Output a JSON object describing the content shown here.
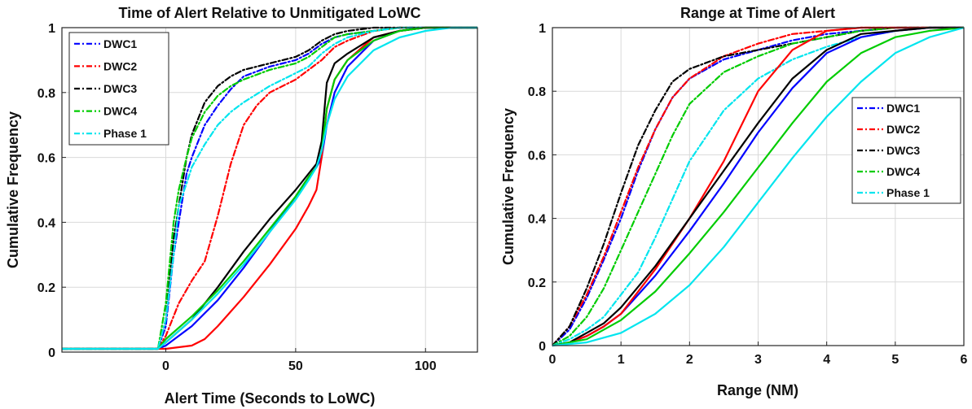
{
  "chart_data": [
    {
      "type": "line",
      "title": "Time of Alert Relative to Unmitigated LoWC",
      "xlabel": "Alert Time (Seconds to LoWC)",
      "ylabel": "Cumulative Frequency",
      "xlim": [
        -40,
        120
      ],
      "ylim": [
        0,
        1
      ],
      "xticks": [
        0,
        50,
        100
      ],
      "yticks": [
        0,
        0.2,
        0.4,
        0.6,
        0.8,
        1
      ],
      "yticklabels": [
        "0",
        "0.2",
        "0.4",
        "0.6",
        "0.8",
        "1"
      ],
      "grid": true,
      "legend_position": "top-left",
      "legend": [
        "DWC1",
        "DWC2",
        "DWC3",
        "DWC4",
        "Phase 1"
      ],
      "series": [
        {
          "name": "DWC1",
          "color": "#0000ff",
          "style": "dashdot",
          "x": [
            -40,
            -3,
            0,
            3,
            6,
            8,
            10,
            15,
            20,
            25,
            30,
            40,
            50,
            55,
            60,
            65,
            70,
            80,
            90,
            120
          ],
          "y": [
            0.01,
            0.01,
            0.08,
            0.3,
            0.45,
            0.55,
            0.6,
            0.7,
            0.76,
            0.81,
            0.85,
            0.88,
            0.9,
            0.92,
            0.95,
            0.97,
            0.98,
            0.99,
            1.0,
            1.0
          ]
        },
        {
          "name": "DWC2",
          "color": "#ff0000",
          "style": "dashdot",
          "x": [
            -40,
            -3,
            0,
            5,
            10,
            15,
            20,
            25,
            30,
            35,
            40,
            50,
            60,
            65,
            70,
            80,
            90,
            120
          ],
          "y": [
            0.01,
            0.01,
            0.05,
            0.15,
            0.22,
            0.28,
            0.42,
            0.58,
            0.7,
            0.76,
            0.8,
            0.84,
            0.9,
            0.94,
            0.96,
            0.99,
            1.0,
            1.0
          ]
        },
        {
          "name": "DWC3",
          "color": "#000000",
          "style": "dashdot",
          "x": [
            -40,
            -3,
            0,
            3,
            6,
            8,
            10,
            15,
            20,
            25,
            30,
            40,
            50,
            55,
            60,
            65,
            70,
            80,
            90,
            120
          ],
          "y": [
            0.01,
            0.01,
            0.1,
            0.35,
            0.5,
            0.6,
            0.67,
            0.77,
            0.82,
            0.85,
            0.87,
            0.89,
            0.91,
            0.93,
            0.96,
            0.98,
            0.99,
            1.0,
            1.0,
            1.0
          ]
        },
        {
          "name": "DWC4",
          "color": "#00cc00",
          "style": "dashdot",
          "x": [
            -40,
            -3,
            0,
            3,
            5,
            8,
            10,
            15,
            20,
            25,
            30,
            40,
            50,
            55,
            60,
            65,
            70,
            80,
            90,
            120
          ],
          "y": [
            0.01,
            0.01,
            0.15,
            0.4,
            0.5,
            0.6,
            0.66,
            0.74,
            0.79,
            0.82,
            0.84,
            0.87,
            0.89,
            0.91,
            0.94,
            0.97,
            0.98,
            0.99,
            1.0,
            1.0
          ]
        },
        {
          "name": "Phase 1",
          "color": "#00e5ee",
          "style": "dashdot",
          "x": [
            -40,
            -3,
            0,
            3,
            5,
            8,
            10,
            15,
            20,
            25,
            30,
            40,
            50,
            55,
            60,
            65,
            70,
            80,
            90,
            120
          ],
          "y": [
            0.01,
            0.01,
            0.1,
            0.3,
            0.45,
            0.52,
            0.57,
            0.64,
            0.7,
            0.74,
            0.77,
            0.82,
            0.86,
            0.88,
            0.92,
            0.95,
            0.97,
            0.99,
            1.0,
            1.0
          ]
        },
        {
          "name": "DWC1",
          "color": "#0000ff",
          "style": "solid",
          "x": [
            -40,
            -3,
            0,
            10,
            20,
            30,
            40,
            50,
            55,
            58,
            60,
            62,
            65,
            70,
            80,
            90,
            100,
            120
          ],
          "y": [
            0.01,
            0.01,
            0.02,
            0.08,
            0.16,
            0.26,
            0.37,
            0.48,
            0.54,
            0.57,
            0.6,
            0.7,
            0.8,
            0.88,
            0.96,
            0.99,
            1.0,
            1.0
          ]
        },
        {
          "name": "DWC2",
          "color": "#ff0000",
          "style": "solid",
          "x": [
            -40,
            -3,
            0,
            10,
            15,
            20,
            30,
            40,
            50,
            55,
            58,
            60,
            62,
            65,
            70,
            80,
            90,
            100,
            120
          ],
          "y": [
            0.01,
            0.01,
            0.01,
            0.02,
            0.04,
            0.08,
            0.17,
            0.27,
            0.38,
            0.45,
            0.5,
            0.6,
            0.75,
            0.84,
            0.9,
            0.97,
            0.99,
            1.0,
            1.0
          ]
        },
        {
          "name": "DWC3",
          "color": "#000000",
          "style": "solid",
          "x": [
            -40,
            -3,
            0,
            10,
            20,
            30,
            40,
            50,
            55,
            58,
            60,
            62,
            65,
            70,
            80,
            90,
            100,
            120
          ],
          "y": [
            0.01,
            0.01,
            0.03,
            0.1,
            0.2,
            0.31,
            0.41,
            0.5,
            0.55,
            0.58,
            0.65,
            0.83,
            0.89,
            0.92,
            0.97,
            0.99,
            1.0,
            1.0
          ]
        },
        {
          "name": "DWC4",
          "color": "#00cc00",
          "style": "solid",
          "x": [
            -40,
            -3,
            0,
            10,
            20,
            30,
            40,
            50,
            55,
            58,
            60,
            62,
            65,
            70,
            80,
            90,
            100,
            120
          ],
          "y": [
            0.01,
            0.01,
            0.04,
            0.11,
            0.19,
            0.28,
            0.38,
            0.48,
            0.54,
            0.57,
            0.62,
            0.75,
            0.84,
            0.9,
            0.96,
            0.99,
            1.0,
            1.0
          ]
        },
        {
          "name": "Phase 1",
          "color": "#00e5ee",
          "style": "solid",
          "x": [
            -40,
            -3,
            0,
            10,
            20,
            30,
            40,
            50,
            55,
            58,
            60,
            62,
            65,
            70,
            80,
            90,
            100,
            110,
            120
          ],
          "y": [
            0.01,
            0.01,
            0.03,
            0.1,
            0.18,
            0.27,
            0.37,
            0.47,
            0.53,
            0.57,
            0.62,
            0.7,
            0.78,
            0.85,
            0.93,
            0.97,
            0.99,
            1.0,
            1.0
          ]
        }
      ]
    },
    {
      "type": "line",
      "title": "Range at Time of Alert",
      "xlabel": "Range (NM)",
      "ylabel": "Cumulative Frequency",
      "xlim": [
        0,
        6
      ],
      "ylim": [
        0,
        1
      ],
      "xticks": [
        0,
        1,
        2,
        3,
        4,
        5,
        6
      ],
      "yticks": [
        0,
        0.2,
        0.4,
        0.6,
        0.8,
        1
      ],
      "yticklabels": [
        "0",
        "0.2",
        "0.4",
        "0.6",
        "0.8",
        "1"
      ],
      "grid": true,
      "legend_position": "middle-right",
      "legend": [
        "DWC1",
        "DWC2",
        "DWC3",
        "DWC4",
        "Phase 1"
      ],
      "series": [
        {
          "name": "DWC1",
          "color": "#0000ff",
          "style": "dashdot",
          "x": [
            0,
            0.25,
            0.5,
            0.75,
            1,
            1.25,
            1.5,
            1.75,
            2,
            2.5,
            3,
            3.5,
            4,
            4.5,
            5,
            6
          ],
          "y": [
            0,
            0.05,
            0.15,
            0.27,
            0.4,
            0.55,
            0.68,
            0.78,
            0.84,
            0.9,
            0.93,
            0.96,
            0.98,
            0.99,
            1.0,
            1.0
          ]
        },
        {
          "name": "DWC2",
          "color": "#ff0000",
          "style": "dashdot",
          "x": [
            0,
            0.25,
            0.5,
            0.75,
            1,
            1.25,
            1.5,
            1.75,
            2,
            2.5,
            3,
            3.5,
            4,
            4.5,
            5,
            6
          ],
          "y": [
            0,
            0.06,
            0.16,
            0.28,
            0.42,
            0.56,
            0.68,
            0.78,
            0.84,
            0.91,
            0.95,
            0.98,
            0.99,
            1.0,
            1.0,
            1.0
          ]
        },
        {
          "name": "DWC3",
          "color": "#000000",
          "style": "dashdot",
          "x": [
            0,
            0.25,
            0.5,
            0.75,
            1,
            1.25,
            1.5,
            1.75,
            2,
            2.5,
            3,
            3.5,
            4,
            4.5,
            5,
            6
          ],
          "y": [
            0,
            0.06,
            0.18,
            0.32,
            0.48,
            0.63,
            0.74,
            0.83,
            0.87,
            0.91,
            0.93,
            0.95,
            0.97,
            0.99,
            1.0,
            1.0
          ]
        },
        {
          "name": "DWC4",
          "color": "#00cc00",
          "style": "dashdot",
          "x": [
            0,
            0.25,
            0.5,
            0.75,
            1,
            1.25,
            1.5,
            1.75,
            2,
            2.5,
            3,
            3.5,
            4,
            4.5,
            5,
            6
          ],
          "y": [
            0,
            0.03,
            0.09,
            0.18,
            0.3,
            0.42,
            0.54,
            0.66,
            0.76,
            0.86,
            0.91,
            0.95,
            0.97,
            0.99,
            1.0,
            1.0
          ]
        },
        {
          "name": "Phase 1",
          "color": "#00e5ee",
          "style": "dashdot",
          "x": [
            0,
            0.25,
            0.5,
            0.75,
            1,
            1.25,
            1.5,
            1.75,
            2,
            2.5,
            3,
            3.5,
            4,
            4.5,
            5,
            5.5,
            6
          ],
          "y": [
            0,
            0.02,
            0.05,
            0.09,
            0.16,
            0.23,
            0.34,
            0.46,
            0.58,
            0.74,
            0.84,
            0.9,
            0.94,
            0.97,
            0.99,
            1.0,
            1.0
          ]
        },
        {
          "name": "DWC1",
          "color": "#0000ff",
          "style": "solid",
          "x": [
            0,
            0.25,
            0.5,
            0.75,
            1,
            1.5,
            2,
            2.5,
            3,
            3.5,
            4,
            4.5,
            5,
            5.5,
            6
          ],
          "y": [
            0,
            0.01,
            0.03,
            0.06,
            0.1,
            0.22,
            0.36,
            0.51,
            0.67,
            0.81,
            0.92,
            0.97,
            0.99,
            1.0,
            1.0
          ]
        },
        {
          "name": "DWC2",
          "color": "#ff0000",
          "style": "solid",
          "x": [
            0,
            0.25,
            0.5,
            0.75,
            1,
            1.5,
            2,
            2.5,
            3,
            3.5,
            4,
            4.5,
            5,
            6
          ],
          "y": [
            0,
            0.01,
            0.03,
            0.06,
            0.1,
            0.24,
            0.4,
            0.58,
            0.8,
            0.93,
            0.99,
            1.0,
            1.0,
            1.0
          ]
        },
        {
          "name": "DWC3",
          "color": "#000000",
          "style": "solid",
          "x": [
            0,
            0.25,
            0.5,
            0.75,
            1,
            1.5,
            2,
            2.5,
            3,
            3.5,
            4,
            4.5,
            5,
            5.5,
            6
          ],
          "y": [
            0,
            0.01,
            0.04,
            0.07,
            0.12,
            0.25,
            0.4,
            0.55,
            0.7,
            0.84,
            0.93,
            0.98,
            0.99,
            1.0,
            1.0
          ]
        },
        {
          "name": "DWC4",
          "color": "#00cc00",
          "style": "solid",
          "x": [
            0,
            0.25,
            0.5,
            0.75,
            1,
            1.5,
            2,
            2.5,
            3,
            3.5,
            4,
            4.5,
            5,
            5.5,
            6
          ],
          "y": [
            0,
            0.01,
            0.02,
            0.05,
            0.08,
            0.17,
            0.29,
            0.42,
            0.56,
            0.7,
            0.83,
            0.92,
            0.97,
            0.99,
            1.0
          ]
        },
        {
          "name": "Phase 1",
          "color": "#00e5ee",
          "style": "solid",
          "x": [
            0,
            0.5,
            1,
            1.5,
            2,
            2.5,
            3,
            3.5,
            4,
            4.5,
            5,
            5.5,
            6
          ],
          "y": [
            0,
            0.01,
            0.04,
            0.1,
            0.19,
            0.31,
            0.45,
            0.59,
            0.72,
            0.83,
            0.92,
            0.97,
            1.0
          ]
        }
      ]
    }
  ]
}
